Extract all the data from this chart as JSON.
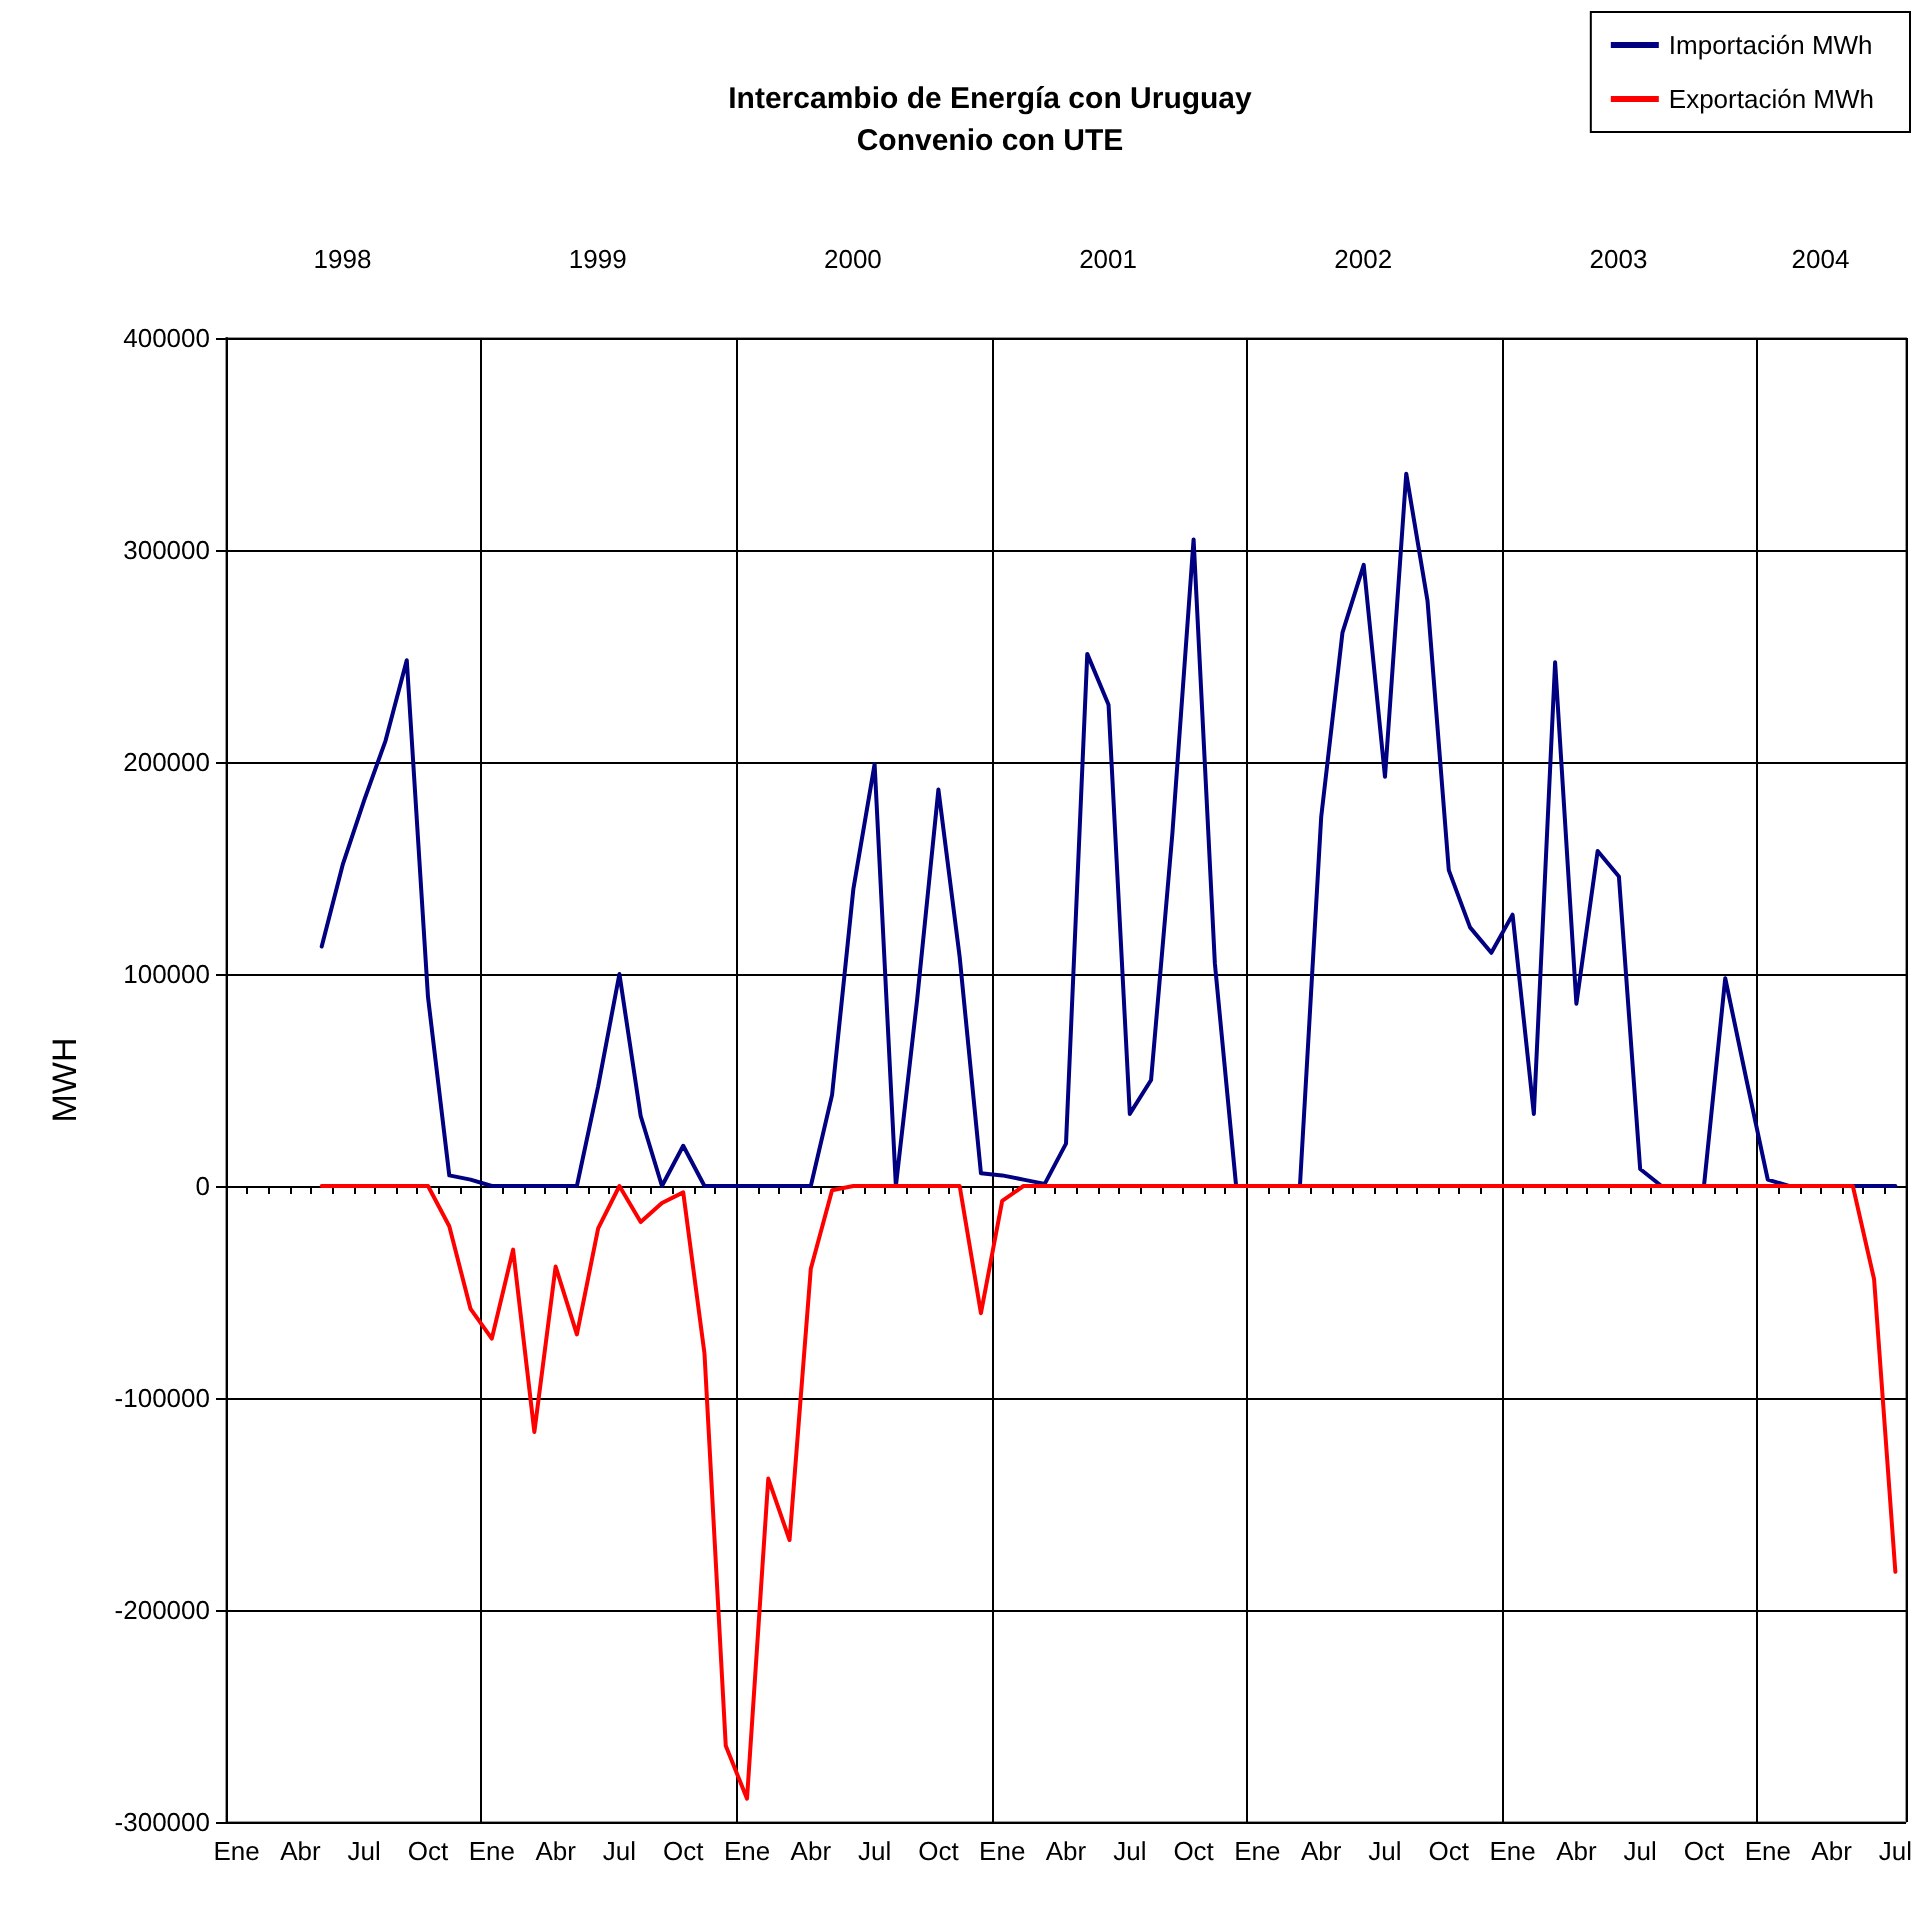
{
  "chart_data": {
    "type": "line",
    "title": "Intercambio de Energía con Uruguay\nConvenio con UTE",
    "ylabel": "MWH",
    "categories": [
      "Ene",
      null,
      null,
      "Abr",
      null,
      null,
      "Jul",
      null,
      null,
      "Oct",
      null,
      null,
      "Ene",
      null,
      null,
      "Abr",
      null,
      null,
      "Jul",
      null,
      null,
      "Oct",
      null,
      null,
      "Ene",
      null,
      null,
      "Abr",
      null,
      null,
      "Jul",
      null,
      null,
      "Oct",
      null,
      null,
      "Ene",
      null,
      null,
      "Abr",
      null,
      null,
      "Jul",
      null,
      null,
      "Oct",
      null,
      null,
      "Ene",
      null,
      null,
      "Abr",
      null,
      null,
      "Jul",
      null,
      null,
      "Oct",
      null,
      null,
      "Ene",
      null,
      null,
      "Abr",
      null,
      null,
      "Jul",
      null,
      null,
      "Oct",
      null,
      null,
      "Ene",
      null,
      null,
      "Abr",
      null,
      null,
      "Jul"
    ],
    "series": [
      {
        "name": "Importación MWh",
        "color": "#000080",
        "values": [
          null,
          null,
          null,
          null,
          113000,
          152000,
          182000,
          210000,
          248000,
          89000,
          5000,
          3000,
          0,
          0,
          0,
          0,
          0,
          47000,
          100000,
          33000,
          0,
          19000,
          0,
          0,
          0,
          0,
          0,
          0,
          43000,
          140000,
          199000,
          0,
          88000,
          187000,
          108000,
          6000,
          5000,
          3000,
          1000,
          20000,
          251000,
          227000,
          34000,
          50000,
          166000,
          305000,
          105000,
          0,
          0,
          0,
          0,
          174000,
          261000,
          293000,
          193000,
          336000,
          276000,
          149000,
          122000,
          110000,
          128000,
          34000,
          247000,
          86000,
          158000,
          146000,
          8000,
          0,
          0,
          0,
          98000,
          50000,
          3000,
          0,
          0,
          0,
          0,
          0,
          0
        ]
      },
      {
        "name": "Exportación MWh",
        "color": "#ff0000",
        "values": [
          null,
          null,
          null,
          null,
          0,
          0,
          0,
          0,
          0,
          0,
          -19000,
          -58000,
          -72000,
          -30000,
          -116000,
          -38000,
          -70000,
          -20000,
          0,
          -17000,
          -8000,
          -3000,
          -79000,
          -264000,
          -289000,
          -138000,
          -167000,
          -39000,
          -2000,
          0,
          0,
          0,
          0,
          0,
          0,
          -60000,
          -7000,
          0,
          0,
          0,
          0,
          0,
          0,
          0,
          0,
          0,
          0,
          0,
          0,
          0,
          0,
          0,
          0,
          0,
          0,
          0,
          0,
          0,
          0,
          0,
          0,
          0,
          0,
          0,
          0,
          0,
          0,
          0,
          0,
          0,
          0,
          0,
          0,
          0,
          0,
          0,
          0,
          -44000,
          -182000
        ]
      }
    ],
    "ylim": [
      -300000,
      400000
    ],
    "yticks": [
      -300000,
      -200000,
      -100000,
      0,
      100000,
      200000,
      300000,
      400000
    ],
    "annotations": [
      "1998",
      "1999",
      "2000",
      "2001",
      "2002",
      "2003",
      "2004"
    ],
    "grid": true,
    "legend": "top right",
    "marker": "none",
    "line_style": "solid"
  }
}
